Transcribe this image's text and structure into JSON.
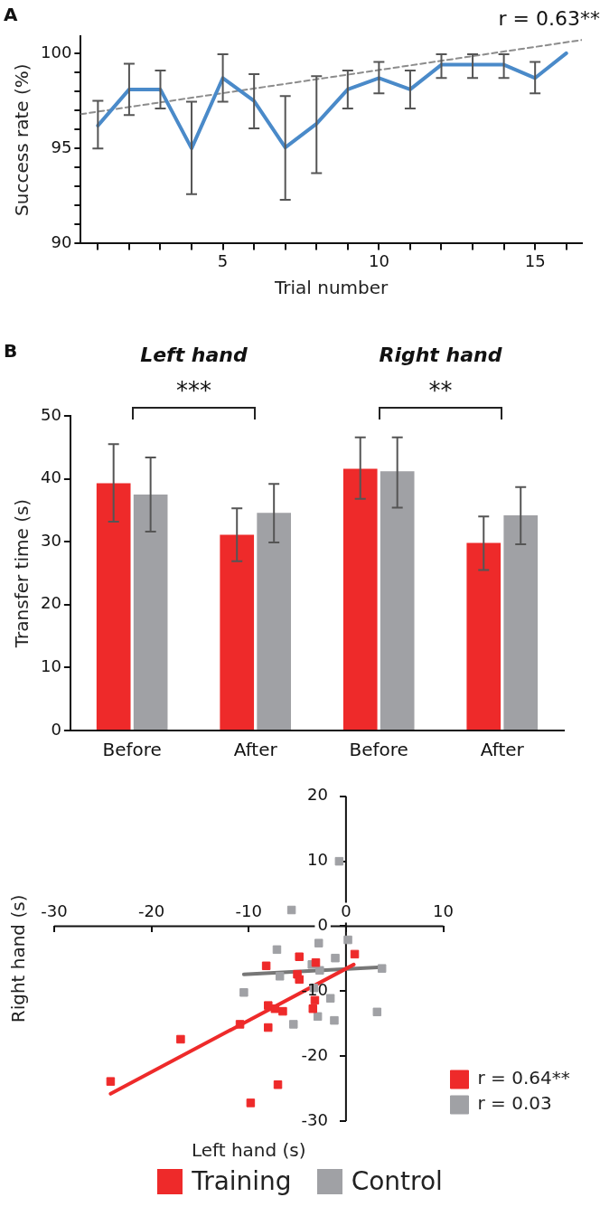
{
  "chart_data": [
    {
      "type": "line",
      "xlabel": "Trial number",
      "ylabel": "Success rate (%)",
      "annotations": [
        "A",
        "r = 0.63**"
      ],
      "x": [
        1,
        2,
        3,
        4,
        5,
        6,
        7,
        8,
        9,
        10,
        11,
        12,
        13,
        14,
        15,
        16
      ],
      "series": [
        {
          "color": "#4a8ac9",
          "values": [
            96.2,
            98.1,
            98.1,
            95.0,
            98.7,
            97.5,
            95.05,
            96.3,
            98.1,
            98.7,
            98.1,
            99.4,
            99.4,
            99.4,
            98.7,
            100
          ],
          "errors": [
            [
              95.0,
              97.5
            ],
            [
              96.75,
              99.45
            ],
            [
              97.1,
              99.1
            ],
            [
              92.6,
              97.45
            ],
            [
              97.45,
              99.95
            ],
            [
              96.05,
              98.9
            ],
            [
              92.3,
              97.75
            ],
            [
              93.7,
              98.8
            ],
            [
              97.1,
              99.1
            ],
            [
              97.9,
              99.55
            ],
            [
              97.1,
              99.1
            ],
            [
              98.7,
              99.95
            ],
            [
              98.7,
              99.95
            ],
            [
              98.7,
              99.95
            ],
            [
              97.9,
              99.55
            ],
            null
          ]
        },
        {
          "type": "line",
          "line_style": "dashed",
          "color": "#8c8c8c",
          "x": [
            0.45,
            16.5
          ],
          "values": [
            96.8,
            100.7
          ]
        }
      ],
      "xlim": [
        0.45,
        16.5
      ],
      "xticks": [
        {
          "value": 1,
          "label": null
        },
        {
          "value": 2,
          "label": null
        },
        {
          "value": 3,
          "label": null
        },
        {
          "value": 4,
          "label": null
        },
        5,
        {
          "value": 6,
          "label": null
        },
        {
          "value": 7,
          "label": null
        },
        {
          "value": 8,
          "label": null
        },
        {
          "value": 9,
          "label": null
        },
        10,
        {
          "value": 11,
          "label": null
        },
        {
          "value": 12,
          "label": null
        },
        {
          "value": 13,
          "label": null
        },
        {
          "value": 14,
          "label": null
        },
        15,
        {
          "value": 16,
          "label": null
        }
      ],
      "ylim": [
        90,
        100.9
      ],
      "yticks": [
        90,
        {
          "value": 91,
          "label": null
        },
        {
          "value": 92,
          "label": null
        },
        {
          "value": 93,
          "label": null
        },
        {
          "value": 94,
          "label": null
        },
        95,
        {
          "value": 96,
          "label": null
        },
        {
          "value": 97,
          "label": null
        },
        {
          "value": 98,
          "label": null
        },
        {
          "value": 99,
          "label": null
        },
        100
      ],
      "marker": "none",
      "grid": false,
      "legend": false
    },
    {
      "type": "bar",
      "ylabel": "Transfer time (s)",
      "annotations": [
        "B",
        "Left hand",
        "Right hand",
        "***",
        "**"
      ],
      "categories": [
        "Before",
        "After",
        "Before",
        "After"
      ],
      "series": [
        {
          "name": "Training",
          "color": "#ee2a2a",
          "values": [
            39.3,
            31.1,
            41.6,
            29.8
          ],
          "errors": [
            [
              33.2,
              45.5
            ],
            [
              26.9,
              35.3
            ],
            [
              36.8,
              46.6
            ],
            [
              25.5,
              34.0
            ]
          ]
        },
        {
          "name": "Control",
          "color": "#a0a1a5",
          "values": [
            37.5,
            34.6,
            41.2,
            34.2
          ],
          "errors": [
            [
              31.6,
              43.4
            ],
            [
              29.9,
              39.2
            ],
            [
              35.4,
              46.6
            ],
            [
              29.6,
              38.7
            ]
          ]
        }
      ],
      "ylim": [
        0,
        50
      ],
      "yticks": [
        0,
        10,
        20,
        30,
        40,
        50
      ],
      "grid": false,
      "legend": "bottom"
    },
    {
      "type": "scatter",
      "xlabel": "Left hand (s)",
      "ylabel": "Right hand (s)",
      "series": [
        {
          "name": "r = 0.64**",
          "color": "#ee2a2a",
          "x": [
            -24.2,
            -17.0,
            -10.9,
            -8.0,
            -8.0,
            -7.3,
            -6.5,
            -7.0,
            -9.8,
            -8.2,
            -4.8,
            -5.0,
            -4.8,
            -3.1,
            -3.4,
            -3.2,
            0.9
          ],
          "values": [
            -23.9,
            -17.4,
            -15.1,
            -15.6,
            -12.2,
            -12.7,
            -13.1,
            -24.4,
            -27.2,
            -6.1,
            -4.7,
            -7.4,
            -8.2,
            -5.6,
            -12.7,
            -11.4,
            -4.3
          ]
        },
        {
          "name": "r = 0.03",
          "color": "#a0a1a5",
          "x": [
            -0.7,
            -5.6,
            0.2,
            -2.8,
            -7.1,
            -1.1,
            -3.5,
            -2.7,
            -6.8,
            3.7,
            -10.5,
            -3.3,
            -1.6,
            -5.4,
            -2.9,
            -1.2,
            3.2
          ],
          "values": [
            10.0,
            2.5,
            -2.1,
            -2.6,
            -3.6,
            -4.9,
            -5.9,
            -6.8,
            -7.7,
            -6.5,
            -10.2,
            -9.5,
            -11.1,
            -15.1,
            -13.9,
            -14.5,
            -13.2
          ]
        },
        {
          "type": "line",
          "marker": "none",
          "color": "#ee2a2a",
          "x": [
            -24.2,
            0.8
          ],
          "values": [
            -25.8,
            -5.9
          ]
        },
        {
          "type": "line",
          "marker": "none",
          "color": "#777777",
          "x": [
            -10.5,
            3.7
          ],
          "values": [
            -7.4,
            -6.3
          ]
        }
      ],
      "xlim": [
        -30,
        10
      ],
      "xticks": [
        -30,
        -20,
        -10,
        0,
        10
      ],
      "ylim": [
        -30,
        20
      ],
      "yticks": [
        -30,
        -20,
        -10,
        0,
        10,
        20
      ],
      "marker": "square",
      "grid": false,
      "legend": "bottom right"
    }
  ]
}
